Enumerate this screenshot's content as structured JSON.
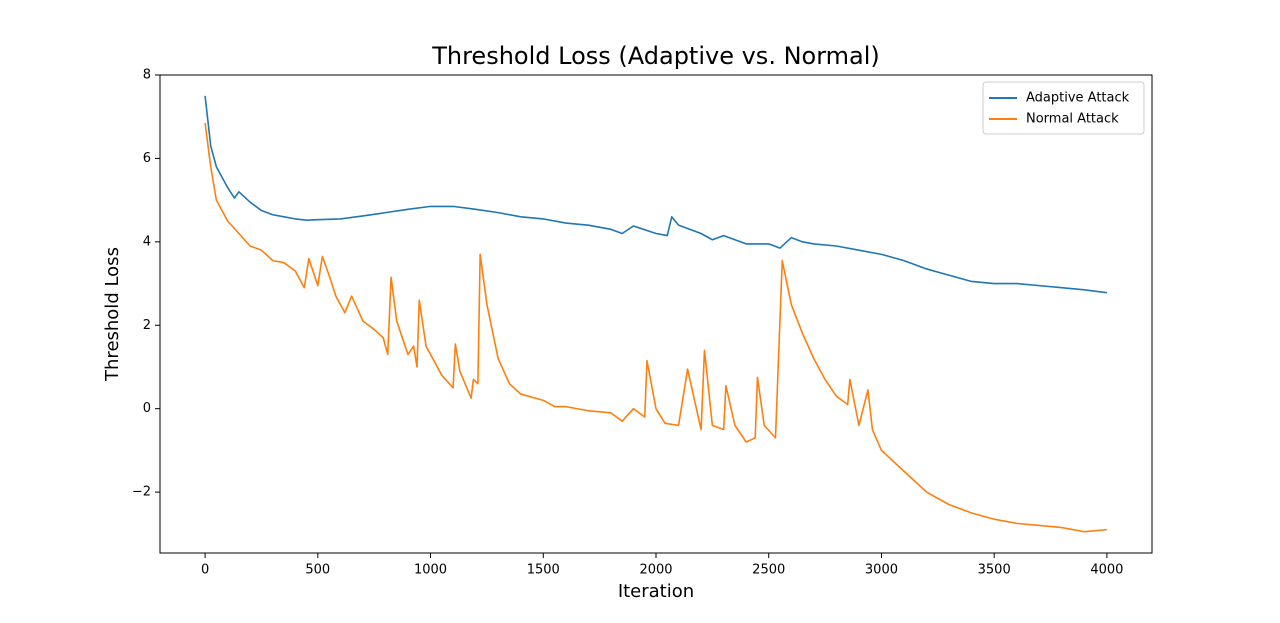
{
  "chart_data": {
    "type": "line",
    "title": "Threshold Loss (Adaptive vs. Normal)",
    "x_label": "Iteration",
    "y_label": "Threshold Loss",
    "xlim": [
      -200,
      4200
    ],
    "ylim": [
      -3.46,
      8
    ],
    "xticks": [
      0,
      500,
      1000,
      1500,
      2000,
      2500,
      3000,
      3500,
      4000
    ],
    "yticks": [
      {
        "value": -2,
        "label": "−2"
      },
      0,
      2,
      4,
      6,
      8
    ],
    "legend": "upper right",
    "series": [
      {
        "name": "Adaptive Attack",
        "color": "#1f77b4",
        "x": [
          0,
          25,
          50,
          100,
          130,
          150,
          200,
          250,
          300,
          350,
          400,
          450,
          500,
          600,
          700,
          800,
          900,
          1000,
          1100,
          1200,
          1300,
          1400,
          1500,
          1600,
          1700,
          1800,
          1850,
          1900,
          2000,
          2050,
          2070,
          2100,
          2200,
          2250,
          2300,
          2400,
          2500,
          2550,
          2600,
          2650,
          2700,
          2800,
          2900,
          3000,
          3100,
          3200,
          3300,
          3400,
          3500,
          3600,
          3700,
          3800,
          3900,
          4000
        ],
        "values": [
          7.5,
          6.3,
          5.8,
          5.3,
          5.05,
          5.2,
          4.95,
          4.75,
          4.65,
          4.6,
          4.55,
          4.52,
          4.53,
          4.55,
          4.62,
          4.7,
          4.78,
          4.85,
          4.85,
          4.78,
          4.7,
          4.6,
          4.55,
          4.45,
          4.4,
          4.3,
          4.2,
          4.38,
          4.2,
          4.15,
          4.6,
          4.4,
          4.2,
          4.05,
          4.15,
          3.95,
          3.95,
          3.85,
          4.1,
          4.0,
          3.95,
          3.9,
          3.8,
          3.7,
          3.55,
          3.35,
          3.2,
          3.05,
          3.0,
          3.0,
          2.95,
          2.9,
          2.85,
          2.78
        ]
      },
      {
        "name": "Normal Attack",
        "color": "#ff7f0e",
        "x": [
          0,
          25,
          50,
          100,
          150,
          200,
          250,
          300,
          350,
          400,
          440,
          460,
          500,
          520,
          550,
          580,
          620,
          650,
          700,
          750,
          790,
          810,
          825,
          850,
          900,
          925,
          940,
          950,
          980,
          1050,
          1100,
          1110,
          1130,
          1180,
          1190,
          1210,
          1220,
          1250,
          1300,
          1350,
          1400,
          1500,
          1550,
          1600,
          1700,
          1800,
          1850,
          1900,
          1950,
          1960,
          2000,
          2040,
          2100,
          2140,
          2200,
          2215,
          2250,
          2300,
          2310,
          2350,
          2400,
          2440,
          2450,
          2480,
          2530,
          2560,
          2600,
          2650,
          2700,
          2750,
          2800,
          2850,
          2860,
          2900,
          2940,
          2960,
          3000,
          3100,
          3200,
          3300,
          3400,
          3500,
          3600,
          3700,
          3800,
          3900,
          4000
        ],
        "values": [
          6.85,
          5.8,
          5.0,
          4.5,
          4.2,
          3.9,
          3.8,
          3.55,
          3.5,
          3.3,
          2.9,
          3.6,
          2.95,
          3.65,
          3.2,
          2.7,
          2.3,
          2.7,
          2.1,
          1.9,
          1.7,
          1.3,
          3.15,
          2.1,
          1.3,
          1.5,
          1.0,
          2.6,
          1.5,
          0.8,
          0.5,
          1.55,
          0.9,
          0.25,
          0.7,
          0.6,
          3.7,
          2.5,
          1.2,
          0.6,
          0.35,
          0.2,
          0.05,
          0.05,
          -0.05,
          -0.1,
          -0.3,
          0,
          -0.2,
          1.15,
          0,
          -0.35,
          -0.4,
          0.95,
          -0.5,
          1.4,
          -0.4,
          -0.5,
          0.55,
          -0.4,
          -0.8,
          -0.7,
          0.75,
          -0.4,
          -0.7,
          3.55,
          2.5,
          1.8,
          1.2,
          0.7,
          0.3,
          0.1,
          0.7,
          -0.4,
          0.45,
          -0.5,
          -1.0,
          -1.5,
          -2.0,
          -2.3,
          -2.5,
          -2.65,
          -2.75,
          -2.8,
          -2.85,
          -2.95,
          -2.9
        ]
      }
    ]
  }
}
